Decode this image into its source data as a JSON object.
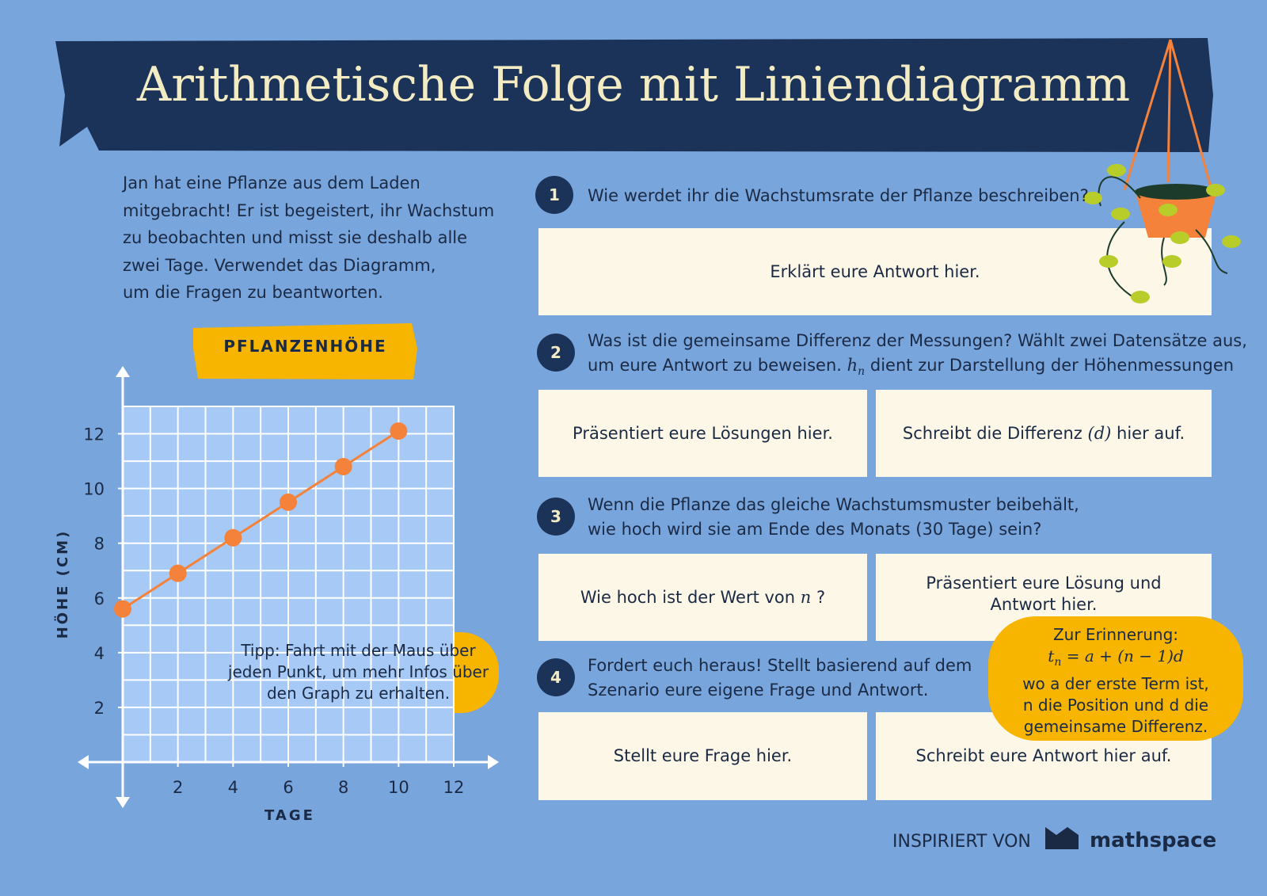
{
  "title": "Arithmetische Folge mit Liniendiagramm",
  "intro": [
    "Jan hat eine Pflanze aus dem Laden",
    "mitgebracht! Er ist begeistert, ihr Wachstum",
    "zu beobachten und misst sie deshalb alle",
    "zwei Tage. Verwendet das Diagramm,",
    "um die Fragen zu beantworten."
  ],
  "chart_data": {
    "type": "line",
    "title": "PFLANZENHÖHE",
    "x_label": "TAGE",
    "y_label": "HÖHE (CM)",
    "x": [
      0,
      2,
      4,
      6,
      8,
      10
    ],
    "values": [
      5.6,
      6.9,
      8.2,
      9.5,
      10.8,
      12.1
    ],
    "color": "#f5823a",
    "xlim": [
      0,
      12
    ],
    "ylim": [
      0,
      13
    ],
    "xticks": [
      2,
      4,
      6,
      8,
      10,
      12
    ],
    "yticks": [
      2,
      4,
      6,
      8,
      10,
      12
    ],
    "grid": true
  },
  "tip": [
    "Tipp: Fahrt mit der Maus über",
    "jeden Punkt, um mehr Infos über",
    "den Graph zu erhalten."
  ],
  "questions": [
    {
      "number": 1,
      "text": [
        "Wie werdet ihr die Wachstumsrate der Pflanze beschreiben?"
      ],
      "boxes": [
        {
          "text": "Erklärt eure Antwort hier."
        }
      ]
    },
    {
      "number": 2,
      "text": [
        "Was ist die gemeinsame Differenz der Messungen? Wählt zwei Datensätze aus,",
        {
          "before": "um eure Antwort zu beweisen.",
          "math": "h",
          "sub": "n",
          "after": "dient zur Darstellung der Höhenmessungen"
        }
      ],
      "boxes": [
        {
          "text": "Präsentiert eure Lösungen hier."
        },
        {
          "before": "Schreibt die Differenz",
          "math": "(d)",
          "after": "hier auf."
        }
      ]
    },
    {
      "number": 3,
      "text": [
        "Wenn die Pflanze das gleiche Wachstumsmuster beibehält,",
        "wie hoch wird sie am Ende des Monats (30 Tage) sein?"
      ],
      "boxes": [
        {
          "before": "Wie hoch ist der Wert von",
          "math": "n",
          "after": "?"
        },
        {
          "lines": [
            "Präsentiert eure Lösung und",
            "Antwort hier."
          ]
        }
      ]
    },
    {
      "number": 4,
      "text": [
        "Fordert euch heraus! Stellt basierend auf dem",
        "Szenario eure eigene Frage und Antwort."
      ],
      "boxes": [
        {
          "text": "Stellt eure Frage hier."
        },
        {
          "text": "Schreibt eure Antwort hier auf."
        }
      ]
    }
  ],
  "reminder": {
    "heading": "Zur Erinnerung:",
    "formula": {
      "math": "t",
      "sub": "n",
      "rest": "= a + (n − 1)d"
    },
    "lines": [
      "wo a der erste Term ist,",
      "n die Position und d die",
      "gemeinsame Differenz."
    ]
  },
  "footer": {
    "inspired": "INSPIRIERT VON",
    "brand": "mathspace"
  }
}
